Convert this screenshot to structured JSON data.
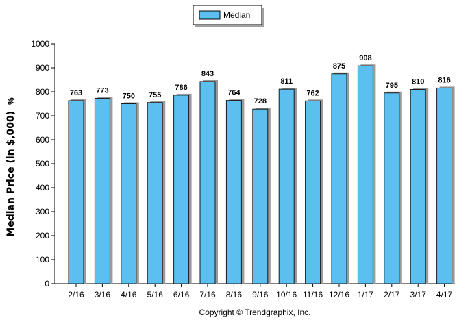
{
  "chart_data": {
    "type": "bar",
    "categories": [
      "2/16",
      "3/16",
      "4/16",
      "5/16",
      "6/16",
      "7/16",
      "8/16",
      "9/16",
      "10/16",
      "11/16",
      "12/16",
      "1/17",
      "2/17",
      "3/17",
      "4/17"
    ],
    "series": [
      {
        "name": "Median",
        "values": [
          763,
          773,
          750,
          755,
          786,
          843,
          764,
          728,
          811,
          762,
          875,
          908,
          795,
          810,
          816
        ]
      }
    ],
    "ylabel": "Median Price (in $,000)",
    "ylabel_unit": "%",
    "ylim": [
      0,
      1000
    ],
    "yticks": [
      0,
      100,
      200,
      300,
      400,
      500,
      600,
      700,
      800,
      900,
      1000
    ],
    "grid": false,
    "legend_position": "top-center",
    "bar_color": "#5bc0f0",
    "bar_stroke": "#1a1a1a"
  },
  "copyright": "Copyright © Trendgraphix, Inc."
}
